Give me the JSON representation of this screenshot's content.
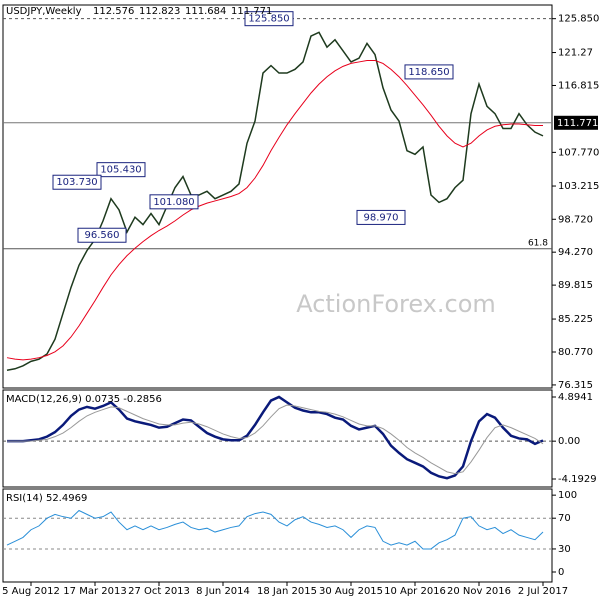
{
  "chart_data": [
    {
      "type": "line",
      "symbol": "USDJPY,Weekly",
      "ohlc": [
        112.576,
        112.823,
        111.684,
        111.771
      ],
      "watermark": "ActionForex.com",
      "ylim": [
        75.9,
        127.7
      ],
      "yticks": [
        {
          "value": 125.85,
          "label": "125.850"
        },
        121.27,
        116.815,
        {
          "value": 107.77,
          "label": "107.770"
        },
        103.215,
        {
          "value": 98.72,
          "label": "98.720"
        },
        {
          "value": 94.27,
          "label": "94.270"
        },
        89.815,
        85.225,
        {
          "value": 80.77,
          "label": "80.770"
        },
        76.315
      ],
      "last_price": 111.771,
      "hlines": [
        {
          "value": 125.85,
          "style": "dashed",
          "color": "#555555"
        },
        {
          "value": 94.73,
          "label": "61.8",
          "style": "solid",
          "color": "#555555"
        }
      ],
      "annotations": [
        {
          "value": 125.85,
          "label": "125.850"
        },
        {
          "value": 118.65,
          "label": "118.650"
        },
        {
          "value": 105.43,
          "label": "105.430"
        },
        {
          "value": 103.73,
          "label": "103.730"
        },
        {
          "value": 101.08,
          "label": "101.080"
        },
        {
          "value": 96.56,
          "label": "96.560"
        },
        {
          "value": 98.97,
          "label": "98.970"
        }
      ],
      "series": [
        {
          "name": "USDJPY",
          "color": "#1e3a1e",
          "values": [
            78.3,
            78.5,
            78.9,
            79.5,
            79.8,
            80.5,
            82.5,
            86.0,
            89.5,
            92.5,
            94.5,
            96.0,
            98.5,
            101.5,
            100.0,
            97.0,
            99.0,
            98.0,
            99.5,
            98.0,
            100.5,
            103.0,
            104.5,
            102.0,
            102.0,
            102.5,
            101.5,
            102.0,
            102.5,
            103.5,
            109.0,
            112.0,
            118.5,
            119.5,
            118.5,
            118.5,
            119.0,
            120.0,
            123.5,
            124.0,
            122.0,
            123.0,
            121.5,
            120.0,
            120.5,
            122.5,
            121.0,
            116.5,
            113.5,
            112.0,
            108.0,
            107.5,
            108.5,
            102.0,
            101.0,
            101.5,
            103.0,
            104.0,
            113.0,
            117.0,
            114.0,
            113.0,
            111.0,
            111.0,
            113.0,
            111.5,
            110.5,
            110.0
          ]
        },
        {
          "name": "MA",
          "color": "#e8001c",
          "values": [
            80.0,
            79.8,
            79.7,
            79.8,
            80.0,
            80.3,
            80.8,
            81.6,
            82.8,
            84.3,
            86.0,
            87.7,
            89.5,
            91.2,
            92.6,
            93.8,
            94.8,
            95.7,
            96.5,
            97.2,
            97.8,
            98.5,
            99.3,
            100.0,
            100.5,
            100.9,
            101.2,
            101.5,
            101.8,
            102.2,
            103.0,
            104.3,
            106.0,
            108.0,
            109.8,
            111.5,
            113.0,
            114.4,
            115.8,
            117.0,
            118.0,
            118.8,
            119.4,
            119.8,
            120.0,
            120.2,
            120.2,
            119.8,
            119.0,
            118.0,
            116.8,
            115.5,
            114.2,
            112.8,
            111.3,
            110.0,
            109.0,
            108.5,
            109.0,
            110.0,
            110.8,
            111.3,
            111.5,
            111.6,
            111.6,
            111.5,
            111.4,
            111.4
          ]
        }
      ]
    },
    {
      "type": "line",
      "title": "MACD(12,26,9) 0.0735 -0.2856",
      "ylim": [
        -5.08,
        5.67
      ],
      "yticks": [
        4.8941,
        {
          "value": 0,
          "label": "0.00"
        },
        -4.1929
      ],
      "hlines": [
        {
          "value": 0,
          "style": "dashed",
          "color": "#555555"
        }
      ],
      "series": [
        {
          "name": "MACD",
          "color": "#0a1a7a",
          "values": [
            0,
            0,
            0,
            0.1,
            0.2,
            0.5,
            1.0,
            1.8,
            2.8,
            3.5,
            3.8,
            3.6,
            3.9,
            4.3,
            3.5,
            2.5,
            2.2,
            2.0,
            1.8,
            1.5,
            1.6,
            2.0,
            2.4,
            2.3,
            1.6,
            0.9,
            0.5,
            0.2,
            0.1,
            0.1,
            0.6,
            1.8,
            3.2,
            4.5,
            4.9,
            4.3,
            3.7,
            3.4,
            3.2,
            3.2,
            3.0,
            2.6,
            2.4,
            1.7,
            1.3,
            1.5,
            1.7,
            0.8,
            -0.5,
            -1.3,
            -2.0,
            -2.4,
            -2.8,
            -3.5,
            -3.9,
            -4.1,
            -3.8,
            -2.8,
            0.0,
            2.2,
            3.0,
            2.6,
            1.5,
            0.6,
            0.3,
            0.2,
            -0.3,
            0.07
          ]
        },
        {
          "name": "Signal",
          "color": "#999999",
          "values": [
            0,
            0,
            0,
            0,
            0.1,
            0.2,
            0.5,
            0.9,
            1.5,
            2.2,
            2.8,
            3.2,
            3.5,
            3.8,
            3.7,
            3.3,
            2.9,
            2.5,
            2.2,
            1.9,
            1.8,
            1.8,
            2.0,
            2.1,
            1.9,
            1.6,
            1.2,
            0.8,
            0.5,
            0.3,
            0.4,
            0.9,
            1.7,
            2.7,
            3.6,
            4.0,
            3.9,
            3.7,
            3.5,
            3.3,
            3.2,
            3.0,
            2.7,
            2.3,
            1.9,
            1.7,
            1.7,
            1.4,
            0.8,
            0.1,
            -0.7,
            -1.3,
            -1.8,
            -2.4,
            -2.9,
            -3.4,
            -3.6,
            -3.4,
            -2.3,
            -1.0,
            0.4,
            1.5,
            1.8,
            1.5,
            1.1,
            0.7,
            0.3,
            -0.29
          ]
        }
      ]
    },
    {
      "type": "line",
      "title": "RSI(14) 52.4969",
      "ylim": [
        -13,
        108
      ],
      "yticks": [
        100,
        70,
        30,
        0
      ],
      "hlines": [
        {
          "value": 70,
          "style": "dashed",
          "color": "#888888"
        },
        {
          "value": 30,
          "style": "dashed",
          "color": "#888888"
        }
      ],
      "categories": [
        null,
        null,
        null,
        "5 Aug 2012",
        null,
        null,
        null,
        null,
        null,
        null,
        null,
        "17 Mar 2013",
        null,
        null,
        null,
        null,
        null,
        null,
        null,
        "27 Oct 2013",
        null,
        null,
        null,
        null,
        null,
        null,
        null,
        "8 Jun 2014",
        null,
        null,
        null,
        null,
        null,
        null,
        null,
        "18 Jan 2015",
        null,
        null,
        null,
        null,
        null,
        null,
        null,
        "30 Aug 2015",
        null,
        null,
        null,
        null,
        null,
        null,
        null,
        "10 Apr 2016",
        null,
        null,
        null,
        null,
        null,
        null,
        null,
        "20 Nov 2016",
        null,
        null,
        null,
        null,
        null,
        null,
        null,
        "2 Jul 2017"
      ],
      "series": [
        {
          "name": "RSI",
          "color": "#2a8fd8",
          "values": [
            35,
            40,
            45,
            55,
            60,
            70,
            75,
            72,
            70,
            80,
            75,
            70,
            72,
            78,
            65,
            55,
            60,
            55,
            60,
            55,
            58,
            62,
            65,
            58,
            55,
            57,
            52,
            55,
            58,
            60,
            72,
            76,
            78,
            75,
            65,
            60,
            68,
            72,
            65,
            62,
            58,
            60,
            55,
            45,
            55,
            60,
            58,
            40,
            35,
            38,
            35,
            40,
            30,
            30,
            38,
            42,
            48,
            70,
            72,
            60,
            55,
            58,
            50,
            55,
            48,
            45,
            42,
            52
          ]
        }
      ]
    }
  ]
}
